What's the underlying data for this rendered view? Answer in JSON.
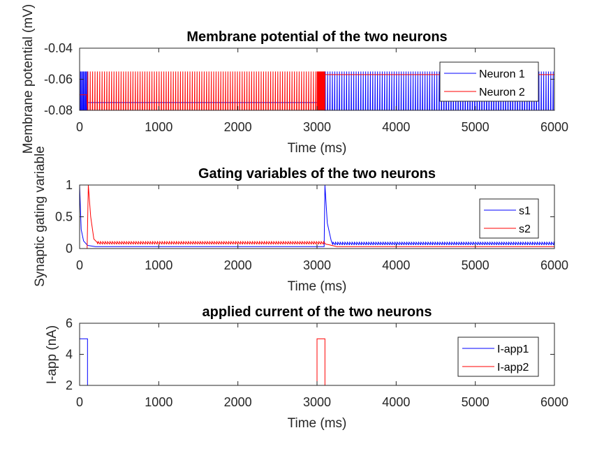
{
  "chart_data": [
    {
      "type": "line",
      "title": "Membrane potential of the two neurons",
      "xlabel": "Time (ms)",
      "ylabel": "Membrane potential (mV)",
      "xlim": [
        0,
        6000
      ],
      "ylim": [
        -0.08,
        -0.04
      ],
      "xticks": [
        0,
        1000,
        2000,
        3000,
        4000,
        5000,
        6000
      ],
      "xtick_labels": [
        "0",
        "1000",
        "2000",
        "3000",
        "4000",
        "5000",
        "6000"
      ],
      "yticks": [
        -0.08,
        -0.06,
        -0.04
      ],
      "ytick_labels": [
        "-0.08",
        "-0.06",
        "-0.04"
      ],
      "grid": false,
      "legend_position": "top-right",
      "series": [
        {
          "name": "Neuron 1",
          "color": "#0000ff",
          "description": "spiking between about -0.08 and -0.055 during 0-100 ms and 3100-6000 ms, resting near -0.075 otherwise",
          "x": [
            0,
            20,
            60,
            100,
            140,
            3000,
            3100,
            3150,
            6000
          ],
          "y": [
            -0.055,
            -0.08,
            -0.055,
            -0.08,
            -0.075,
            -0.075,
            -0.055,
            -0.08,
            -0.055
          ]
        },
        {
          "name": "Neuron 2",
          "color": "#ff0000",
          "description": "spiking between about -0.08 and -0.055 during 100-3100 ms, resting near -0.07 otherwise",
          "x": [
            0,
            100,
            150,
            3000,
            3100,
            3200,
            6000
          ],
          "y": [
            -0.07,
            -0.055,
            -0.08,
            -0.055,
            -0.08,
            -0.057,
            -0.057
          ]
        }
      ]
    },
    {
      "type": "line",
      "title": "Gating variables of the two neurons",
      "xlabel": "Time (ms)",
      "ylabel": "Synaptic gating variable",
      "xlim": [
        0,
        6000
      ],
      "ylim": [
        0,
        1
      ],
      "xticks": [
        0,
        1000,
        2000,
        3000,
        4000,
        5000,
        6000
      ],
      "xtick_labels": [
        "0",
        "1000",
        "2000",
        "3000",
        "4000",
        "5000",
        "6000"
      ],
      "yticks": [
        0,
        0.5,
        1
      ],
      "ytick_labels": [
        "0",
        "0.5",
        "1"
      ],
      "grid": false,
      "legend_position": "top-right",
      "series": [
        {
          "name": "s1",
          "color": "#0000ff",
          "x": [
            0,
            20,
            60,
            100,
            200,
            3000,
            3100,
            3200,
            6000
          ],
          "y": [
            1.0,
            0.3,
            0.1,
            0.05,
            0.03,
            0.03,
            1.0,
            0.08,
            0.08
          ]
        },
        {
          "name": "s2",
          "color": "#ff0000",
          "x": [
            0,
            100,
            130,
            200,
            300,
            3000,
            3100,
            3200,
            6000
          ],
          "y": [
            0.0,
            1.0,
            0.5,
            0.1,
            0.09,
            0.09,
            0.09,
            0.03,
            0.03
          ]
        }
      ]
    },
    {
      "type": "line",
      "title": "applied current of the two neurons",
      "xlabel": "Time (ms)",
      "ylabel": "I-app (nA)",
      "xlim": [
        0,
        6000
      ],
      "ylim": [
        2,
        6
      ],
      "xticks": [
        0,
        1000,
        2000,
        3000,
        4000,
        5000,
        6000
      ],
      "xtick_labels": [
        "0",
        "1000",
        "2000",
        "3000",
        "4000",
        "5000",
        "6000"
      ],
      "yticks": [
        2,
        4,
        6
      ],
      "ytick_labels": [
        "2",
        "4",
        "6"
      ],
      "grid": false,
      "legend_position": "top-right",
      "series": [
        {
          "name": "I-app1",
          "color": "#0000ff",
          "x": [
            0,
            100,
            100,
            6000
          ],
          "y": [
            5,
            5,
            2,
            2
          ]
        },
        {
          "name": "I-app2",
          "color": "#ff0000",
          "x": [
            0,
            3000,
            3000,
            3100,
            3100,
            6000
          ],
          "y": [
            2,
            2,
            5,
            5,
            2,
            2
          ]
        }
      ]
    }
  ]
}
